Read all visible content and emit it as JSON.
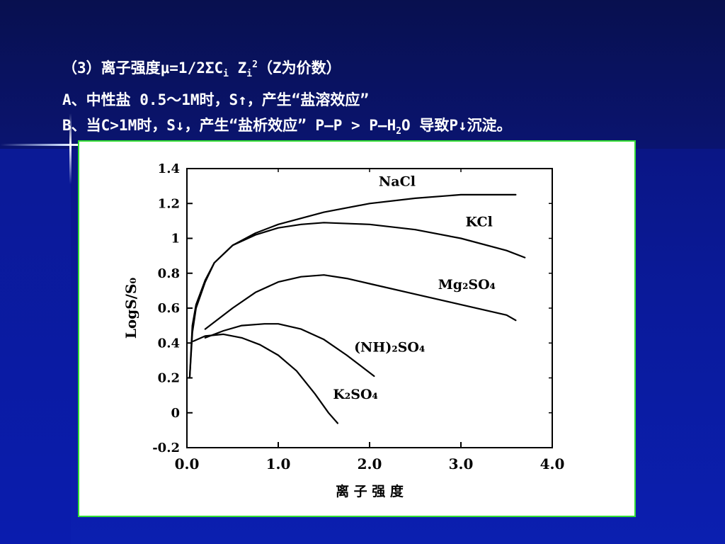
{
  "slide": {
    "colors": {
      "background": "#0a1a9a",
      "text": "#ffffff",
      "chart_border": "#33dd33"
    },
    "lines": [
      {
        "parts": [
          {
            "t": "（3）离子强度μ=1/2ΣC"
          },
          {
            "t": "i",
            "s": "sub"
          },
          {
            "t": " Z"
          },
          {
            "t": "i",
            "s": "sub"
          },
          {
            "t": "2",
            "s": "sup"
          },
          {
            "t": "（Z为价数）"
          }
        ]
      },
      {
        "parts": [
          {
            "t": "A、中性盐 0.5～1M时，S↑，产生“盐溶效应”"
          }
        ]
      },
      {
        "parts": [
          {
            "t": "B、当C>1M时，S↓，产生“盐析效应” P—P > P—H"
          },
          {
            "t": "2",
            "s": "sub"
          },
          {
            "t": "O 导致P↓沉淀。"
          }
        ]
      }
    ]
  },
  "chart_data": {
    "type": "line",
    "xlabel": "离 子 强 度",
    "ylabel": "LogS/S₀",
    "xlim": [
      0,
      4
    ],
    "ylim": [
      -0.2,
      1.4
    ],
    "x_ticks": [
      0,
      1,
      2,
      3,
      4
    ],
    "x_tick_labels": [
      "0.0",
      "1.0",
      "2.0",
      "3.0",
      "4.0"
    ],
    "y_ticks": [
      -0.2,
      0,
      0.2,
      0.4,
      0.6,
      0.8,
      1,
      1.2,
      1.4
    ],
    "y_tick_labels": [
      "-0.2",
      "0",
      "0.2",
      "0.4",
      "0.6",
      "0.8",
      "1",
      "1.2",
      "1.4"
    ],
    "grid": false,
    "series": [
      {
        "name": "NaCl",
        "label_at": [
          2.1,
          1.3
        ],
        "points": [
          [
            0.03,
            0.2
          ],
          [
            0.06,
            0.5
          ],
          [
            0.1,
            0.62
          ],
          [
            0.2,
            0.76
          ],
          [
            0.3,
            0.86
          ],
          [
            0.5,
            0.96
          ],
          [
            0.75,
            1.03
          ],
          [
            1,
            1.08
          ],
          [
            1.5,
            1.15
          ],
          [
            2,
            1.2
          ],
          [
            2.5,
            1.23
          ],
          [
            3,
            1.25
          ],
          [
            3.5,
            1.25
          ],
          [
            3.6,
            1.25
          ]
        ]
      },
      {
        "name": "KCl",
        "label_at": [
          3.05,
          1.07
        ],
        "points": [
          [
            0.03,
            0.2
          ],
          [
            0.06,
            0.46
          ],
          [
            0.1,
            0.6
          ],
          [
            0.2,
            0.75
          ],
          [
            0.3,
            0.86
          ],
          [
            0.5,
            0.96
          ],
          [
            0.75,
            1.02
          ],
          [
            1,
            1.06
          ],
          [
            1.25,
            1.08
          ],
          [
            1.5,
            1.09
          ],
          [
            2,
            1.08
          ],
          [
            2.5,
            1.05
          ],
          [
            3,
            1.0
          ],
          [
            3.5,
            0.93
          ],
          [
            3.7,
            0.89
          ]
        ]
      },
      {
        "name": "Mg₂SO₄",
        "label_at": [
          2.75,
          0.71
        ],
        "points": [
          [
            0.2,
            0.48
          ],
          [
            0.5,
            0.6
          ],
          [
            0.75,
            0.69
          ],
          [
            1,
            0.75
          ],
          [
            1.25,
            0.78
          ],
          [
            1.5,
            0.79
          ],
          [
            1.75,
            0.77
          ],
          [
            2,
            0.74
          ],
          [
            2.5,
            0.68
          ],
          [
            3,
            0.62
          ],
          [
            3.5,
            0.56
          ],
          [
            3.6,
            0.53
          ]
        ]
      },
      {
        "name": "(NH)₂SO₄",
        "label_at": [
          1.83,
          0.35
        ],
        "points": [
          [
            0.2,
            0.43
          ],
          [
            0.4,
            0.47
          ],
          [
            0.6,
            0.5
          ],
          [
            0.85,
            0.51
          ],
          [
            1,
            0.51
          ],
          [
            1.25,
            0.48
          ],
          [
            1.5,
            0.42
          ],
          [
            1.75,
            0.33
          ],
          [
            2.05,
            0.21
          ]
        ]
      },
      {
        "name": "K₂SO₄",
        "label_at": [
          1.6,
          0.08
        ],
        "points": [
          [
            0.07,
            0.41
          ],
          [
            0.2,
            0.44
          ],
          [
            0.4,
            0.45
          ],
          [
            0.6,
            0.43
          ],
          [
            0.8,
            0.39
          ],
          [
            1,
            0.33
          ],
          [
            1.2,
            0.24
          ],
          [
            1.4,
            0.11
          ],
          [
            1.55,
            0.0
          ],
          [
            1.65,
            -0.06
          ]
        ]
      }
    ]
  }
}
